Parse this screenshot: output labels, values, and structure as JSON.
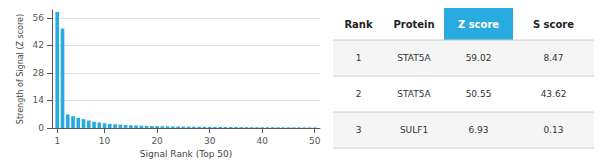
{
  "chart_data": {
    "type": "bar",
    "xlabel": "Signal Rank (Top 50)",
    "ylabel": "Strength of Signal (Z score)",
    "x": [
      1,
      2,
      3,
      4,
      5,
      6,
      7,
      8,
      9,
      10,
      11,
      12,
      13,
      14,
      15,
      16,
      17,
      18,
      19,
      20,
      21,
      22,
      23,
      24,
      25,
      26,
      27,
      28,
      29,
      30,
      31,
      32,
      33,
      34,
      35,
      36,
      37,
      38,
      39,
      40,
      41,
      42,
      43,
      44,
      45,
      46,
      47,
      48,
      49,
      50
    ],
    "values": [
      59.02,
      50.55,
      6.93,
      6.0,
      5.2,
      4.5,
      3.8,
      3.2,
      2.8,
      2.4,
      2.1,
      1.9,
      1.7,
      1.5,
      1.4,
      1.3,
      1.2,
      1.1,
      1.0,
      0.95,
      0.9,
      0.85,
      0.8,
      0.76,
      0.72,
      0.68,
      0.65,
      0.62,
      0.59,
      0.56,
      0.54,
      0.52,
      0.5,
      0.48,
      0.46,
      0.44,
      0.43,
      0.41,
      0.4,
      0.38,
      0.37,
      0.36,
      0.35,
      0.34,
      0.33,
      0.32,
      0.31,
      0.3,
      0.29,
      0.28
    ],
    "color": "#29abe2",
    "xlim": [
      0,
      51
    ],
    "xticks": [
      1,
      10,
      20,
      30,
      40,
      50
    ],
    "ylim": [
      0,
      60
    ],
    "yticks": [
      0,
      14,
      28,
      42,
      56
    ],
    "grid": true,
    "table": {
      "headers": [
        "Rank",
        "Protein",
        "Z score",
        "S score"
      ],
      "rows": [
        [
          "1",
          "STAT5A",
          "59.02",
          "8.47"
        ],
        [
          "2",
          "STAT5A",
          "50.55",
          "43.62"
        ],
        [
          "3",
          "SULF1",
          "6.93",
          "0.13"
        ]
      ],
      "highlight": "Z score",
      "color": "#29abe2"
    }
  }
}
